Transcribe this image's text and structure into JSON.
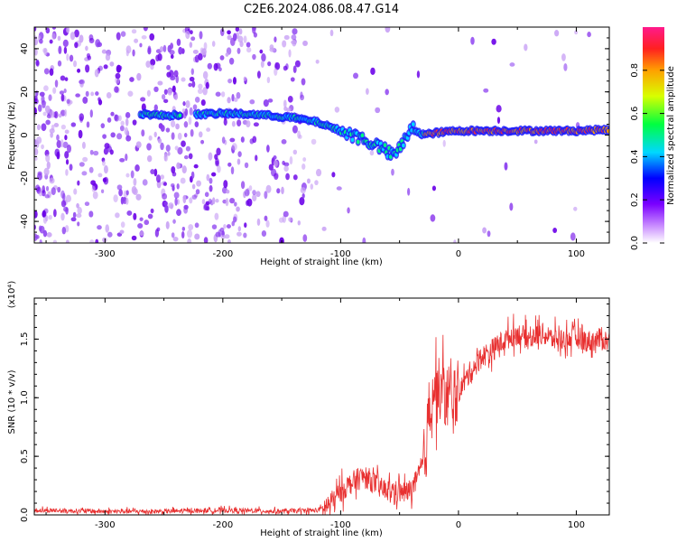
{
  "title": "C2E6.2024.086.08.47.G14",
  "colors": {
    "snr_line": "#e83030",
    "axis": "#000000"
  },
  "chart_data": [
    {
      "type": "heatmap",
      "name": "spectrogram",
      "xlabel": "Height of straight line (km)",
      "ylabel": "Frequency (Hz)",
      "xlim": [
        -360,
        128
      ],
      "ylim": [
        -50,
        50
      ],
      "xticks": [
        -300,
        -200,
        -100,
        0,
        100
      ],
      "xtick_labels": [
        "-300",
        "-200",
        "-100",
        "0",
        "100"
      ],
      "yticks": [
        -40,
        -20,
        0,
        20,
        40
      ],
      "ytick_labels": [
        "-40",
        "-20",
        "0",
        "20",
        "40"
      ],
      "ridge": {
        "x": [
          -270,
          -250,
          -230,
          -200,
          -170,
          -140,
          -120,
          -100,
          -80,
          -65,
          -55,
          -45,
          -38,
          -30,
          -20,
          0,
          50,
          100,
          128
        ],
        "y": [
          10,
          9,
          9.5,
          10,
          9.5,
          8,
          6,
          2,
          -2,
          -6,
          -10,
          -2,
          4,
          0,
          1,
          2,
          2,
          2,
          2.5
        ]
      },
      "colorbar": {
        "label": "Normalized spectral amplitude",
        "range": [
          0,
          1
        ],
        "ticks": [
          0.0,
          0.2,
          0.4,
          0.6,
          0.8
        ],
        "tick_labels": [
          "0.0",
          "0.2",
          "0.4",
          "0.6",
          "0.8"
        ]
      }
    },
    {
      "type": "line",
      "name": "snr",
      "xlabel": "Height of straight line (km)",
      "ylabel": "SNR (10 * v/v)",
      "y_exponent_label": "(x10⁴)",
      "xlim": [
        -360,
        128
      ],
      "ylim": [
        0,
        1.85
      ],
      "xticks": [
        -300,
        -200,
        -100,
        0,
        100
      ],
      "xtick_labels": [
        "-300",
        "-200",
        "-100",
        "0",
        "100"
      ],
      "yticks": [
        0.0,
        0.5,
        1.0,
        1.5
      ],
      "ytick_labels": [
        "0.0",
        "0.5",
        "1.0",
        "1.5"
      ],
      "series": [
        {
          "name": "SNR",
          "x": [
            -360,
            -300,
            -250,
            -200,
            -150,
            -120,
            -110,
            -100,
            -90,
            -80,
            -75,
            -65,
            -55,
            -45,
            -40,
            -35,
            -28,
            -25,
            -22,
            -18,
            -15,
            -10,
            -5,
            0,
            10,
            20,
            30,
            40,
            50,
            60,
            70,
            80,
            90,
            100,
            110,
            120,
            128
          ],
          "y": [
            0.04,
            0.03,
            0.03,
            0.04,
            0.03,
            0.04,
            0.08,
            0.2,
            0.28,
            0.33,
            0.3,
            0.22,
            0.2,
            0.19,
            0.22,
            0.3,
            0.5,
            0.9,
            1.1,
            1.05,
            1.08,
            1.0,
            0.95,
            1.05,
            1.22,
            1.35,
            1.42,
            1.5,
            1.55,
            1.5,
            1.55,
            1.5,
            1.5,
            1.52,
            1.48,
            1.5,
            1.48
          ]
        }
      ]
    }
  ]
}
